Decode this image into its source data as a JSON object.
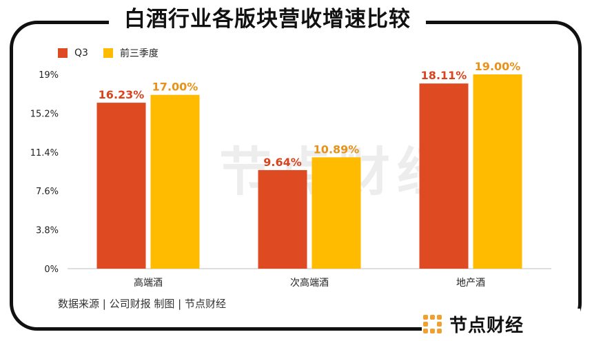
{
  "title": "白酒行业各版块营收增速比较",
  "source": "数据来源 | 公司财报   制图 | 节点财经",
  "watermark": "节点财经",
  "brand": {
    "name": "节点财经"
  },
  "colors": {
    "q3": "#de4a22",
    "ytd": "#ffbb00",
    "q3_label": "#d9441e",
    "ytd_label": "#e8921a"
  },
  "chart_data": {
    "type": "bar",
    "categories": [
      "高端酒",
      "次高端酒",
      "地产酒"
    ],
    "series": [
      {
        "name": "Q3",
        "values": [
          16.23,
          9.64,
          18.11
        ],
        "labels": [
          "16.23%",
          "9.64%",
          "18.11%"
        ]
      },
      {
        "name": "前三季度",
        "values": [
          17.0,
          10.89,
          19.0
        ],
        "labels": [
          "17.00%",
          "10.89%",
          "19.00%"
        ]
      }
    ],
    "yticks": [
      "0%",
      "3.8%",
      "7.6%",
      "11.4%",
      "15.2%",
      "19%"
    ],
    "ytick_values": [
      0,
      3.8,
      7.6,
      11.4,
      15.2,
      19
    ],
    "ylim": [
      0,
      19
    ],
    "legend": "top-left",
    "grid": false
  }
}
